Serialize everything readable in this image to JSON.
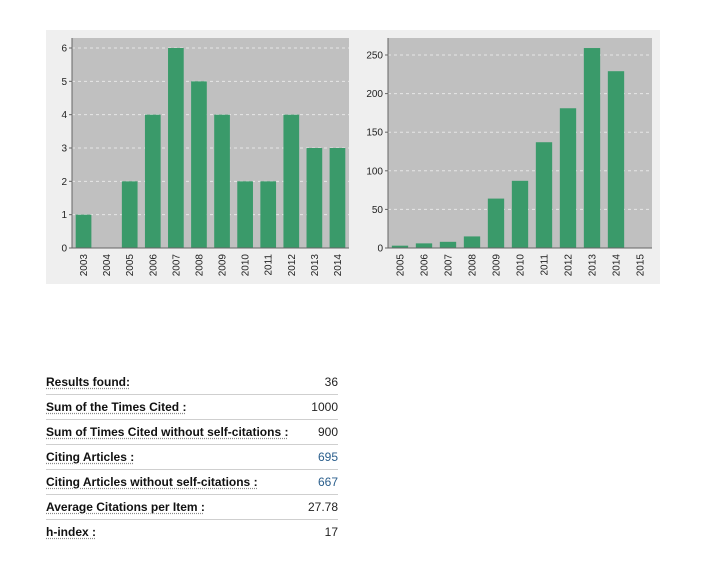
{
  "chart_data": [
    {
      "type": "bar",
      "categories": [
        "2003",
        "2004",
        "2005",
        "2006",
        "2007",
        "2008",
        "2009",
        "2010",
        "2011",
        "2012",
        "2013",
        "2014"
      ],
      "values": [
        1,
        0,
        2,
        4,
        6,
        5,
        4,
        2,
        2,
        4,
        3,
        3
      ],
      "ylim": [
        0,
        6.3
      ],
      "yticks": [
        0,
        1,
        2,
        3,
        4,
        5,
        6
      ],
      "grid": true,
      "bar_color": "#3a9a6a",
      "plot_background": "#c0c0c0",
      "title": "",
      "xlabel": "",
      "ylabel": ""
    },
    {
      "type": "bar",
      "categories": [
        "2005",
        "2006",
        "2007",
        "2008",
        "2009",
        "2010",
        "2011",
        "2012",
        "2013",
        "2014",
        "2015"
      ],
      "values": [
        3,
        6,
        8,
        15,
        64,
        87,
        137,
        181,
        259,
        229,
        0
      ],
      "ylim": [
        0,
        272
      ],
      "yticks": [
        0,
        50,
        100,
        150,
        200,
        250
      ],
      "grid": true,
      "bar_color": "#3a9a6a",
      "plot_background": "#c0c0c0",
      "title": "",
      "xlabel": "",
      "ylabel": ""
    }
  ],
  "stats": [
    {
      "label": "Results found:",
      "value": "36",
      "link": false
    },
    {
      "label": "Sum of the Times Cited  :",
      "value": "1000",
      "link": false
    },
    {
      "label": "Sum of Times Cited without self-citations  :",
      "value": "900",
      "link": false
    },
    {
      "label": "Citing Articles  :",
      "value": "695",
      "link": true
    },
    {
      "label": "Citing Articles without self-citations :",
      "value": "667",
      "link": true
    },
    {
      "label": "Average Citations per Item :",
      "value": "27.78",
      "link": false
    },
    {
      "label": "h-index  :",
      "value": "17",
      "link": false
    }
  ]
}
